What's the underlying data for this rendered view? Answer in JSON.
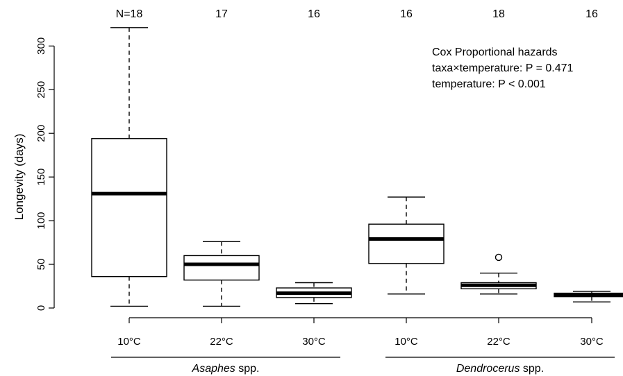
{
  "chart_data": {
    "type": "boxplot",
    "ylabel": "Longevity (days)",
    "ylim": [
      0,
      320
    ],
    "yticks": [
      0,
      50,
      100,
      150,
      200,
      250,
      300
    ],
    "grid": false,
    "legend": "none",
    "n_prefix": "N=",
    "boxes": [
      {
        "group": "Asaphes",
        "temperature": "10°C",
        "n": 18,
        "whisker_low": 2,
        "q1": 36,
        "median": 131,
        "q3": 194,
        "whisker_high": 321,
        "outliers": []
      },
      {
        "group": "Asaphes",
        "temperature": "22°C",
        "n": 17,
        "whisker_low": 2,
        "q1": 32,
        "median": 50,
        "q3": 60,
        "whisker_high": 76,
        "outliers": []
      },
      {
        "group": "Asaphes",
        "temperature": "30°C",
        "n": 16,
        "whisker_low": 5,
        "q1": 12,
        "median": 17,
        "q3": 23,
        "whisker_high": 29,
        "outliers": []
      },
      {
        "group": "Dendrocerus",
        "temperature": "10°C",
        "n": 16,
        "whisker_low": 16,
        "q1": 51,
        "median": 79,
        "q3": 96,
        "whisker_high": 127,
        "outliers": []
      },
      {
        "group": "Dendrocerus",
        "temperature": "22°C",
        "n": 18,
        "whisker_low": 16,
        "q1": 22,
        "median": 26,
        "q3": 29,
        "whisker_high": 40,
        "outliers": [
          58
        ]
      },
      {
        "group": "Dendrocerus",
        "temperature": "30°C",
        "n": 16,
        "whisker_low": 7,
        "q1": 13,
        "median": 15,
        "q3": 17,
        "whisker_high": 19,
        "outliers": []
      }
    ],
    "groups": [
      {
        "italic": "Asaphes",
        "suffix": " spp."
      },
      {
        "italic": "Dendrocerus",
        "suffix": " spp."
      }
    ],
    "annotation": [
      "Cox Proportional hazards",
      "taxa×temperature: P = 0.471",
      "temperature: P < 0.001"
    ]
  }
}
